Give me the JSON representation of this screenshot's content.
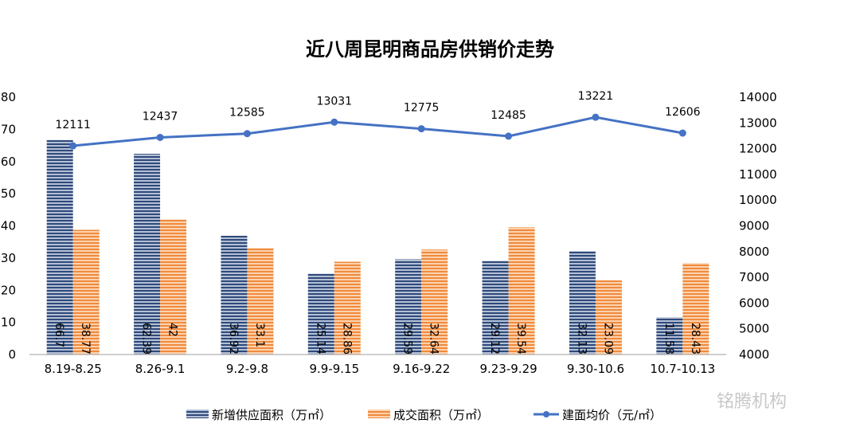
{
  "chart_data": {
    "type": "bar+line",
    "title": "近八周昆明商品房供销价走势",
    "categories": [
      "8.19-8.25",
      "8.26-9.1",
      "9.2-9.8",
      "9.9-9.15",
      "9.16-9.22",
      "9.23-9.29",
      "9.30-10.6",
      "10.7-10.13"
    ],
    "series": [
      {
        "name": "新增供应面积（万㎡）",
        "type": "bar",
        "axis": "left",
        "color": "#44546a",
        "values": [
          66.7,
          62.39,
          36.92,
          25.14,
          29.59,
          29.12,
          32.13,
          11.58
        ]
      },
      {
        "name": "成交面积（万㎡）",
        "type": "bar",
        "axis": "left",
        "color": "#f4a160",
        "values": [
          38.77,
          42,
          33.1,
          28.86,
          32.64,
          39.54,
          23.09,
          28.43
        ]
      },
      {
        "name": "建面均价（元/㎡）",
        "type": "line",
        "axis": "right",
        "color": "#4472c4",
        "values": [
          12111,
          12437,
          12585,
          13031,
          12775,
          12485,
          13221,
          12606
        ]
      }
    ],
    "yleft": {
      "ylim": [
        0,
        80
      ],
      "ticks": [
        0,
        10,
        20,
        30,
        40,
        50,
        60,
        70,
        80
      ]
    },
    "yright": {
      "ylim": [
        4000,
        14000
      ],
      "ticks": [
        4000,
        5000,
        6000,
        7000,
        8000,
        9000,
        10000,
        11000,
        12000,
        13000,
        14000
      ]
    },
    "legend": "bottom",
    "grid": false
  },
  "watermark": "铭腾机构"
}
